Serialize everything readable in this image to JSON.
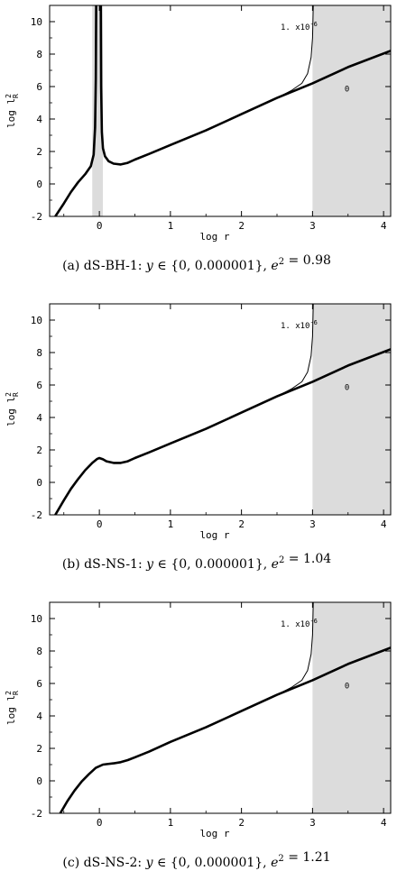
{
  "chart_data": [
    {
      "type": "line",
      "caption": "(a)  dS-BH-1:  y ∈ {0, 0.000001}, e² = 0.98",
      "xlabel": "log r",
      "ylabel": "log l²R",
      "xlim": [
        -0.7,
        4.1
      ],
      "ylim": [
        -2,
        11
      ],
      "xticks": [
        0,
        1,
        2,
        3,
        4
      ],
      "yticks": [
        -2,
        0,
        2,
        4,
        6,
        8,
        10
      ],
      "shaded_regions": [
        [
          -0.1,
          0.05
        ],
        [
          3.0,
          4.1
        ]
      ],
      "annotations": [
        {
          "text": "1. x10⁻⁶",
          "x": 2.55,
          "y": 9.5
        },
        {
          "text": "0",
          "x": 3.45,
          "y": 5.7
        }
      ],
      "series": [
        {
          "label": "0",
          "branches": [
            {
              "x": [
                -0.62,
                -0.5,
                -0.4,
                -0.3,
                -0.2,
                -0.12,
                -0.08,
                -0.06,
                -0.05,
                -0.045
              ],
              "y": [
                -2,
                -1.2,
                -0.5,
                0.1,
                0.6,
                1.1,
                1.8,
                3.5,
                6.5,
                11
              ]
            },
            {
              "x": [
                0.02,
                0.025,
                0.035,
                0.05,
                0.08,
                0.13,
                0.2,
                0.3,
                0.4,
                0.5,
                0.7,
                1.0,
                1.5,
                2.0,
                2.5,
                3.0,
                3.5,
                4.1
              ],
              "y": [
                11,
                6.0,
                3.2,
                2.2,
                1.7,
                1.4,
                1.25,
                1.2,
                1.3,
                1.5,
                1.85,
                2.4,
                3.3,
                4.3,
                5.3,
                6.2,
                7.2,
                8.2
              ]
            }
          ]
        },
        {
          "label": "1. x10⁻⁶",
          "branches": [
            {
              "x": [
                2.5,
                2.7,
                2.85,
                2.93,
                2.98,
                3.0,
                3.01
              ],
              "y": [
                5.3,
                5.75,
                6.2,
                6.8,
                7.8,
                9.0,
                11
              ]
            }
          ]
        }
      ]
    },
    {
      "type": "line",
      "caption": "(b)  dS-NS-1:  y ∈ {0, 0.000001}, e² = 1.04",
      "xlabel": "log r",
      "ylabel": "log l²R",
      "xlim": [
        -0.7,
        4.1
      ],
      "ylim": [
        -2,
        11
      ],
      "xticks": [
        0,
        1,
        2,
        3,
        4
      ],
      "yticks": [
        -2,
        0,
        2,
        4,
        6,
        8,
        10
      ],
      "shaded_regions": [
        [
          3.0,
          4.1
        ]
      ],
      "annotations": [
        {
          "text": "1. x10⁻⁶",
          "x": 2.55,
          "y": 9.5
        },
        {
          "text": "0",
          "x": 3.45,
          "y": 5.7
        }
      ],
      "series": [
        {
          "label": "0",
          "branches": [
            {
              "x": [
                -0.62,
                -0.5,
                -0.4,
                -0.3,
                -0.2,
                -0.1,
                -0.03,
                0.0,
                0.05,
                0.1,
                0.2,
                0.3,
                0.4,
                0.5,
                0.7,
                1.0,
                1.5,
                2.0,
                2.5,
                3.0,
                3.5,
                4.1
              ],
              "y": [
                -2,
                -1.1,
                -0.4,
                0.2,
                0.75,
                1.2,
                1.45,
                1.5,
                1.42,
                1.3,
                1.2,
                1.2,
                1.3,
                1.5,
                1.85,
                2.4,
                3.3,
                4.3,
                5.3,
                6.2,
                7.2,
                8.2
              ]
            }
          ]
        },
        {
          "label": "1. x10⁻⁶",
          "branches": [
            {
              "x": [
                2.5,
                2.7,
                2.85,
                2.93,
                2.98,
                3.0,
                3.01
              ],
              "y": [
                5.3,
                5.75,
                6.2,
                6.8,
                7.8,
                9.0,
                11
              ]
            }
          ]
        }
      ]
    },
    {
      "type": "line",
      "caption": "(c)  dS-NS-2:  y ∈ {0, 0.000001}, e² = 1.21",
      "xlabel": "log r",
      "ylabel": "log l²R",
      "xlim": [
        -0.7,
        4.1
      ],
      "ylim": [
        -2,
        11
      ],
      "xticks": [
        0,
        1,
        2,
        3,
        4
      ],
      "yticks": [
        -2,
        0,
        2,
        4,
        6,
        8,
        10
      ],
      "shaded_regions": [
        [
          3.0,
          4.1
        ]
      ],
      "annotations": [
        {
          "text": "1. x10⁻⁶",
          "x": 2.55,
          "y": 9.5
        },
        {
          "text": "0",
          "x": 3.45,
          "y": 5.7
        }
      ],
      "series": [
        {
          "label": "0",
          "branches": [
            {
              "x": [
                -0.55,
                -0.45,
                -0.35,
                -0.25,
                -0.15,
                -0.05,
                0.05,
                0.1,
                0.2,
                0.3,
                0.4,
                0.5,
                0.7,
                1.0,
                1.5,
                2.0,
                2.5,
                3.0,
                3.5,
                4.1
              ],
              "y": [
                -2,
                -1.25,
                -0.6,
                -0.05,
                0.4,
                0.8,
                1.0,
                1.03,
                1.08,
                1.15,
                1.28,
                1.45,
                1.8,
                2.4,
                3.3,
                4.3,
                5.3,
                6.2,
                7.2,
                8.2
              ]
            }
          ]
        },
        {
          "label": "1. x10⁻⁶",
          "branches": [
            {
              "x": [
                2.5,
                2.7,
                2.85,
                2.93,
                2.98,
                3.0,
                3.01
              ],
              "y": [
                5.3,
                5.75,
                6.2,
                6.8,
                7.8,
                9.0,
                11
              ]
            }
          ]
        }
      ]
    }
  ]
}
